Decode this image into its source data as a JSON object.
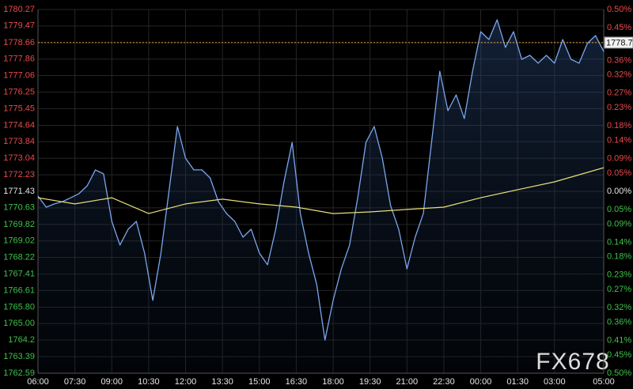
{
  "chart_data": {
    "type": "line",
    "watermark": "FX678",
    "xlim": [
      "06:00",
      "05:00"
    ],
    "xticks": [
      "06:00",
      "07:30",
      "09:00",
      "10:30",
      "12:00",
      "13:30",
      "15:00",
      "16:30",
      "18:00",
      "19:30",
      "21:00",
      "22:30",
      "00:00",
      "01:30",
      "03:00",
      "05:00"
    ],
    "ylim": [
      1762.59,
      1780.27
    ],
    "yticks": [
      1780.27,
      1779.47,
      1778.66,
      1777.86,
      1777.06,
      1776.25,
      1775.45,
      1774.64,
      1773.84,
      1773.04,
      1772.23,
      1771.43,
      1770.63,
      1769.82,
      1769.02,
      1768.22,
      1767.41,
      1766.61,
      {
        "value": 1765.8,
        "label": "1765.80"
      },
      {
        "value": 1765,
        "label": "1765.00"
      },
      1764.2,
      1763.39,
      1762.59
    ],
    "y2lim": [
      -0.5,
      0.5
    ],
    "y2ticks": [
      {
        "value": 0.5,
        "label": "0.50%"
      },
      {
        "value": 0.45,
        "label": "0.45%"
      },
      {
        "value": 0.41,
        "label": "0.41%"
      },
      {
        "value": 0.36,
        "label": "0.36%"
      },
      {
        "value": 0.32,
        "label": "0.32%"
      },
      {
        "value": 0.27,
        "label": "0.27%"
      },
      {
        "value": 0.23,
        "label": "0.23%"
      },
      {
        "value": 0.18,
        "label": "0.18%"
      },
      {
        "value": 0.14,
        "label": "0.14%"
      },
      {
        "value": 0.09,
        "label": "0.09%"
      },
      {
        "value": 0.05,
        "label": "0.05%"
      },
      {
        "value": 0,
        "label": "0.00%"
      },
      {
        "value": -0.05,
        "label": "0.05%"
      },
      {
        "value": -0.09,
        "label": "0.09%"
      },
      {
        "value": -0.14,
        "label": "0.14%"
      },
      {
        "value": -0.18,
        "label": "0.18%"
      },
      {
        "value": -0.23,
        "label": "0.23%"
      },
      {
        "value": -0.27,
        "label": "0.27%"
      },
      {
        "value": -0.32,
        "label": "0.32%"
      },
      {
        "value": -0.36,
        "label": "0.36%"
      },
      {
        "value": -0.41,
        "label": "0.41%"
      },
      {
        "value": -0.45,
        "label": "0.45%"
      },
      {
        "value": -0.5,
        "label": "0.50%"
      }
    ],
    "grid": true,
    "current_price": {
      "value": 1778.66,
      "label": "1778.7"
    },
    "series": [
      {
        "color": "#7aa6ee",
        "x": [
          "06:00",
          "06:20",
          "06:40",
          "07:00",
          "07:20",
          "07:40",
          "08:00",
          "08:20",
          "08:40",
          "09:00",
          "09:20",
          "09:40",
          "10:00",
          "10:20",
          "10:40",
          "11:00",
          "11:20",
          "11:40",
          "12:00",
          "12:20",
          "12:40",
          "13:00",
          "13:20",
          "13:40",
          "14:00",
          "14:20",
          "14:40",
          "15:00",
          "15:20",
          "15:40",
          "16:00",
          "16:20",
          "16:40",
          "17:00",
          "17:20",
          "17:40",
          "18:00",
          "18:20",
          "18:40",
          "19:00",
          "19:20",
          "19:40",
          "20:00",
          "20:20",
          "20:40",
          "21:00",
          "21:20",
          "21:40",
          "22:00",
          "22:20",
          "22:40",
          "23:00",
          "23:20",
          "23:40",
          "00:00",
          "00:20",
          "00:40",
          "01:00",
          "01:20",
          "01:40",
          "02:00",
          "02:20",
          "02:40",
          "03:00",
          "03:20",
          "03:40",
          "04:00",
          "04:20",
          "04:40",
          "05:00"
        ],
        "values": [
          1771.2,
          1770.66,
          1770.82,
          1770.93,
          1771.12,
          1771.32,
          1771.7,
          1772.47,
          1772.28,
          1769.97,
          1768.82,
          1769.59,
          1769.97,
          1768.43,
          1766.13,
          1768.43,
          1771.51,
          1774.58,
          1773.04,
          1772.47,
          1772.47,
          1772.08,
          1770.93,
          1770.35,
          1769.97,
          1769.2,
          1769.59,
          1768.43,
          1767.86,
          1769.59,
          1771.89,
          1773.81,
          1770.35,
          1768.43,
          1766.9,
          1764.2,
          1766.13,
          1767.66,
          1768.82,
          1771.12,
          1773.81,
          1774.58,
          1773.04,
          1770.74,
          1769.59,
          1767.66,
          1769.2,
          1770.35,
          1773.81,
          1777.27,
          1775.35,
          1776.12,
          1774.97,
          1777.27,
          1779.19,
          1778.81,
          1779.77,
          1778.43,
          1779.19,
          1777.85,
          1778.04,
          1777.66,
          1778.04,
          1777.66,
          1778.81,
          1777.85,
          1777.66,
          1778.62,
          1779.0,
          1778.23
        ]
      },
      {
        "color": "#e8df7a",
        "x": [
          "06:00",
          "07:30",
          "09:00",
          "10:30",
          "12:00",
          "13:30",
          "15:00",
          "16:30",
          "18:00",
          "19:30",
          "21:00",
          "22:30",
          "00:00",
          "01:30",
          "03:00",
          "05:00"
        ],
        "values": [
          1771.12,
          1770.82,
          1771.12,
          1770.35,
          1770.82,
          1771.05,
          1770.82,
          1770.66,
          1770.35,
          1770.43,
          1770.55,
          1770.66,
          1771.12,
          1771.51,
          1771.89,
          1772.58
        ]
      }
    ]
  }
}
